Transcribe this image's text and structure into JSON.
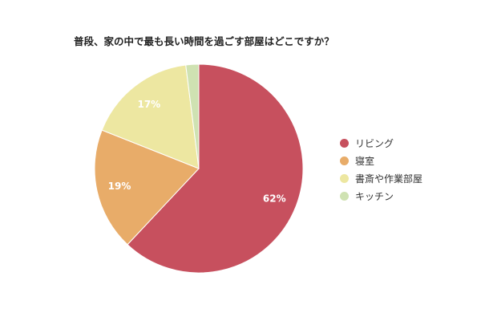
{
  "chart_data": {
    "type": "pie",
    "title": "普段、家の中で最も長い時間を過ごす部屋はどこですか？",
    "categories": [
      "リビング",
      "寝室",
      "書斎や作業部屋",
      "キッチン"
    ],
    "values": [
      62,
      19,
      17,
      2
    ],
    "data_labels": [
      "62%",
      "19%",
      "17%",
      ""
    ],
    "colors": [
      "#c7505e",
      "#e8ac69",
      "#ede7a1",
      "#cfe2b2"
    ],
    "legend_position": "right"
  }
}
